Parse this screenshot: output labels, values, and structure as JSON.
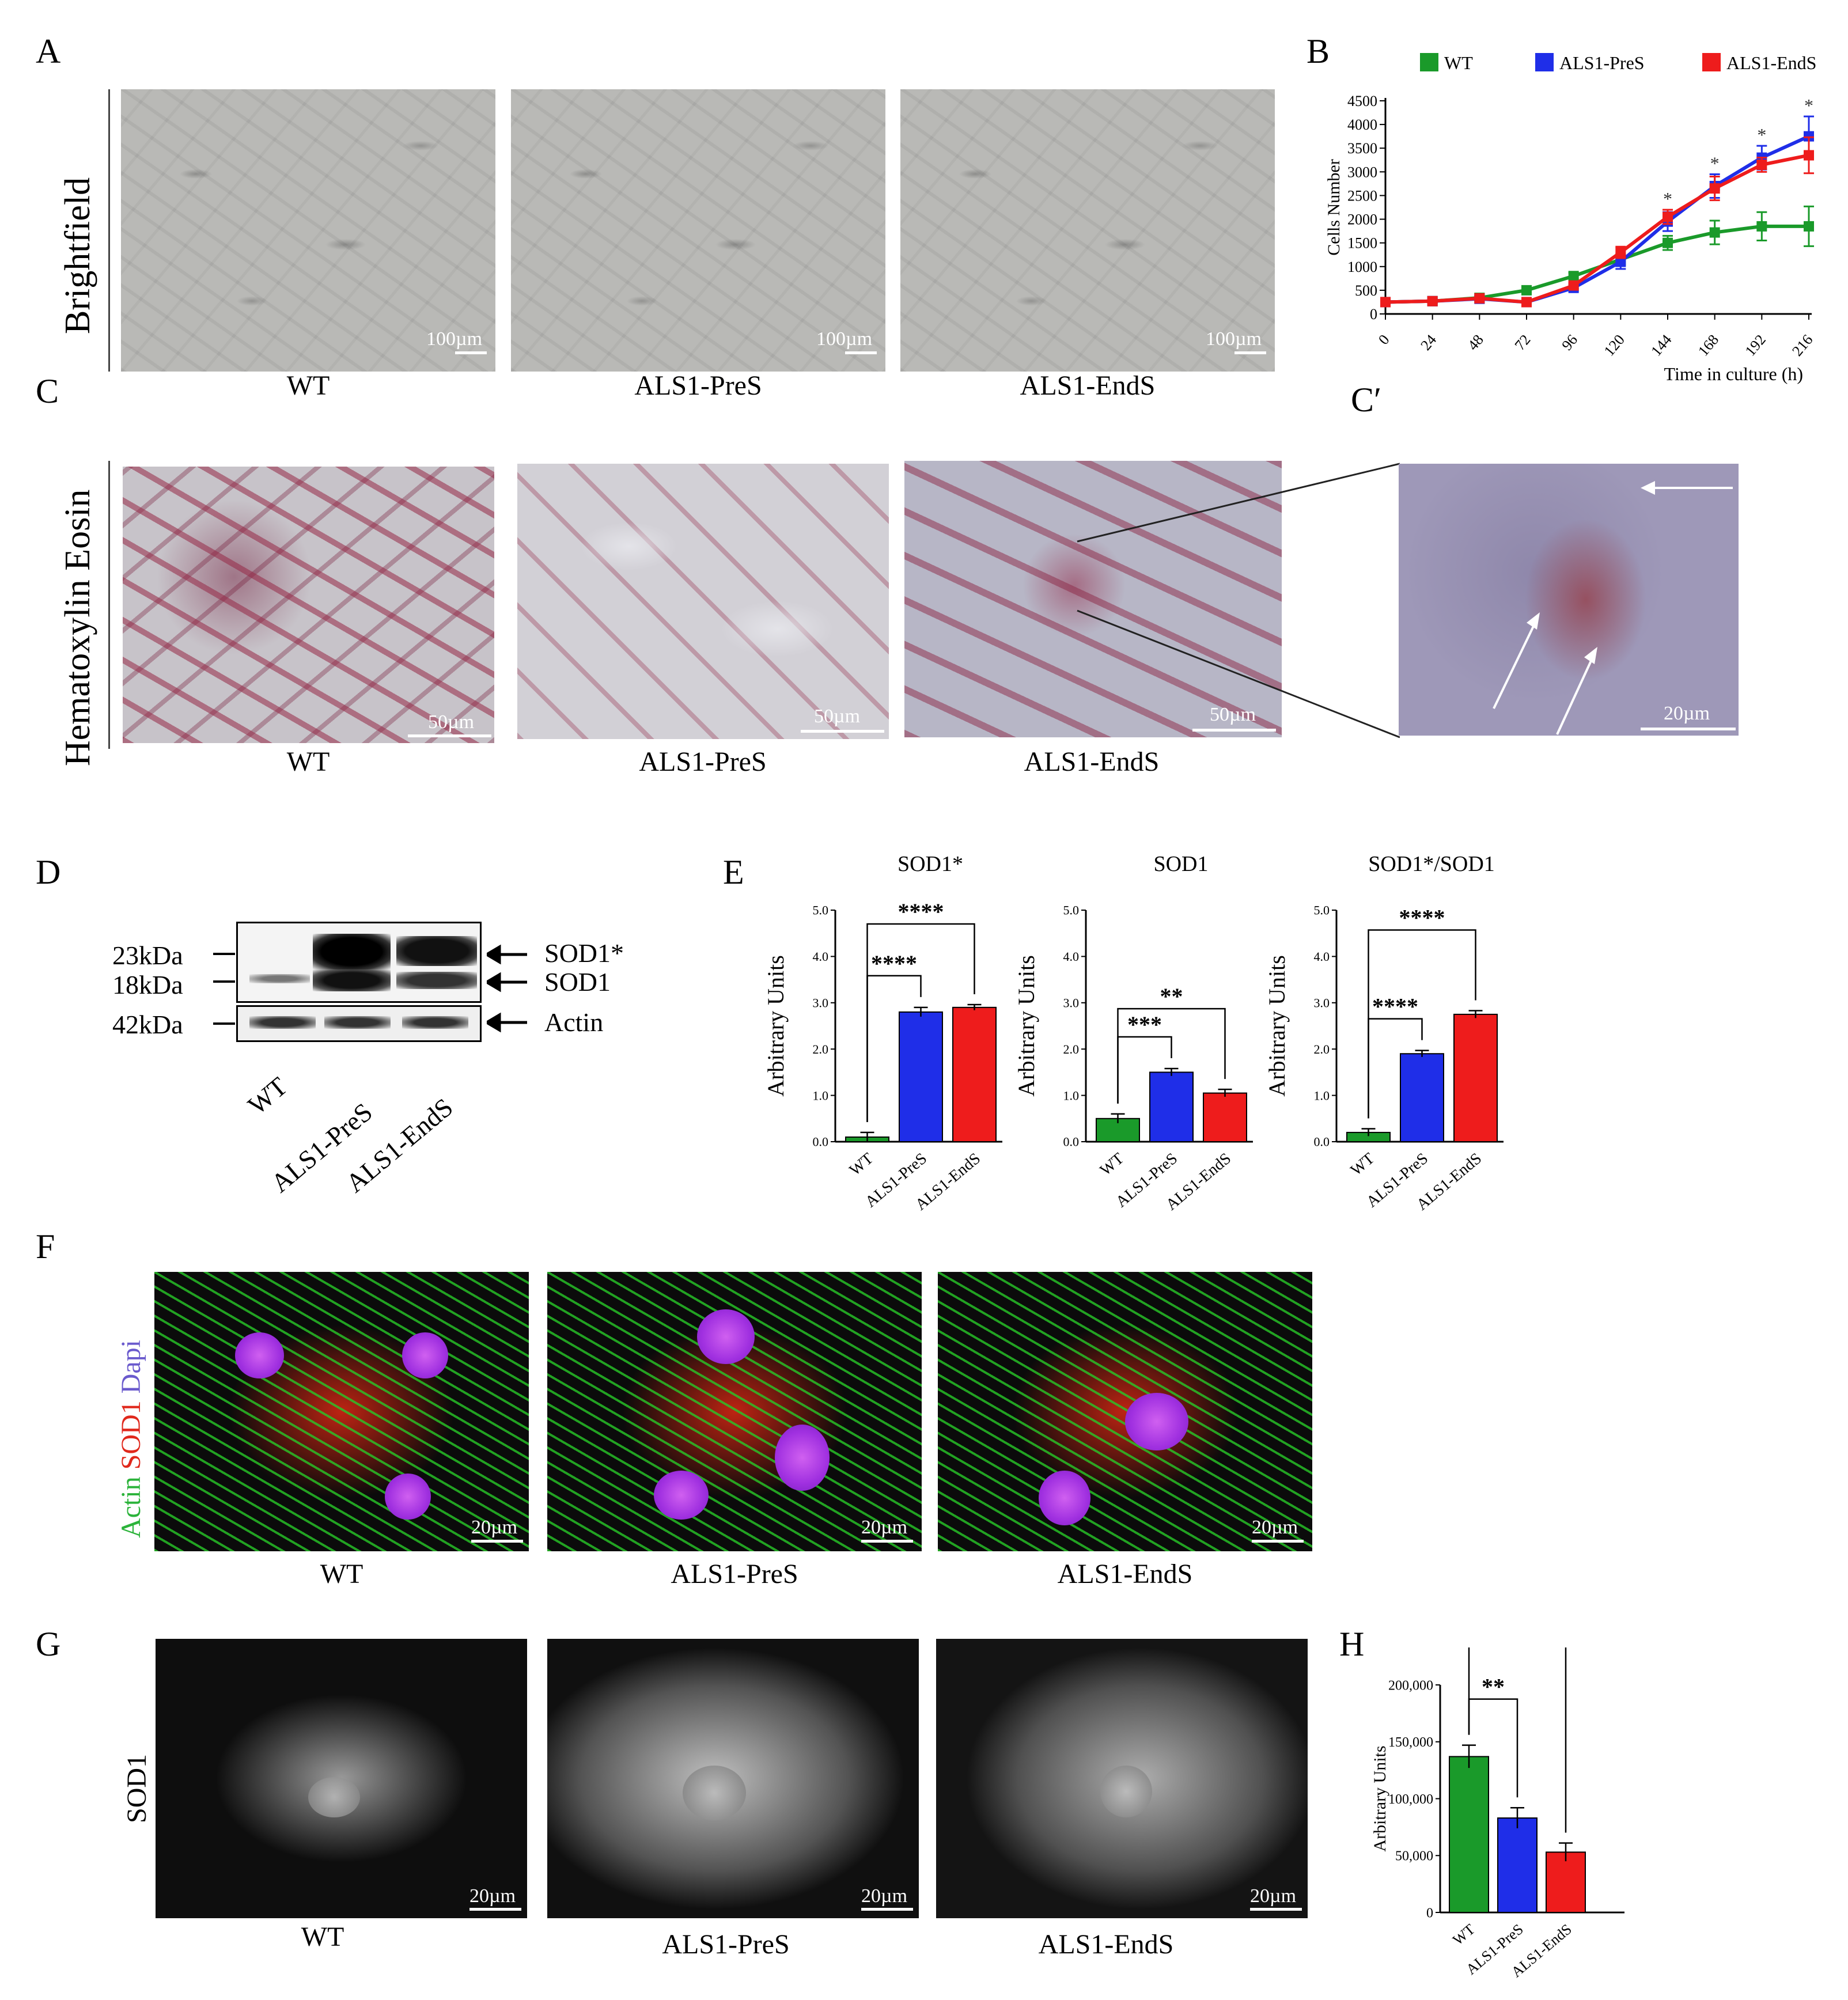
{
  "panel_letters": {
    "A": "A",
    "B": "B",
    "C": "C",
    "C_prime": "C′",
    "D": "D",
    "E": "E",
    "F": "F",
    "G": "G",
    "H": "H"
  },
  "row_labels": {
    "brightfield": "Brightfield",
    "he": "Hematoxylin Eosin",
    "fluor": "Actin SOD1 Dapi",
    "fluor_actin": "Actin",
    "fluor_sod1": "SOD1",
    "fluor_dapi": "Dapi",
    "sod1": "SOD1"
  },
  "conditions": [
    "WT",
    "ALS1-PreS",
    "ALS1-EndS"
  ],
  "scalebars": {
    "bf": "100µm",
    "he": "50µm",
    "zoom": "20µm",
    "fluor": "20µm"
  },
  "colors": {
    "WT": "#1a9a2a",
    "ALS1-PreS": "#1f2ee8",
    "ALS1-EndS": "#ee1c1c",
    "fl_green": "#2ecc40",
    "fl_red": "#e0281c",
    "fl_blue": "#6a5acd"
  },
  "blot": {
    "markers": [
      "23kDa",
      "18kDa",
      "42kDa"
    ],
    "bands": [
      "SOD1*",
      "SOD1",
      "Actin"
    ],
    "lanes": [
      "WT",
      "ALS1-PreS",
      "ALS1-EndS"
    ]
  },
  "chart_data": [
    {
      "id": "B",
      "type": "line",
      "xlabel": "Time in culture (h)",
      "ylabel": "Cells Number",
      "x": [
        0,
        24,
        48,
        72,
        96,
        120,
        144,
        168,
        192,
        216
      ],
      "ylim": [
        0,
        4500
      ],
      "yticks": [
        0,
        500,
        1000,
        1500,
        2000,
        2500,
        3000,
        3500,
        4000,
        4500
      ],
      "legend_position": "top",
      "series": [
        {
          "name": "WT",
          "color": "#1a9a2a",
          "values": [
            250,
            270,
            340,
            500,
            800,
            1150,
            1500,
            1720,
            1850,
            1850
          ],
          "err": [
            30,
            30,
            40,
            50,
            70,
            120,
            150,
            250,
            300,
            420
          ]
        },
        {
          "name": "ALS1-PreS",
          "color": "#1f2ee8",
          "values": [
            250,
            270,
            320,
            250,
            550,
            1100,
            1950,
            2700,
            3300,
            3750
          ],
          "err": [
            30,
            30,
            40,
            40,
            60,
            150,
            200,
            250,
            250,
            420
          ]
        },
        {
          "name": "ALS1-EndS",
          "color": "#ee1c1c",
          "values": [
            250,
            270,
            330,
            250,
            600,
            1300,
            2050,
            2650,
            3150,
            3350
          ],
          "err": [
            30,
            30,
            40,
            40,
            60,
            120,
            150,
            250,
            150,
            380
          ]
        }
      ],
      "significance": [
        {
          "x": 144,
          "label": "*"
        },
        {
          "x": 168,
          "label": "*"
        },
        {
          "x": 192,
          "label": "*"
        },
        {
          "x": 216,
          "label": "*"
        }
      ]
    },
    {
      "id": "E1",
      "type": "bar",
      "title": "SOD1*",
      "ylabel": "Arbitrary Units",
      "categories": [
        "WT",
        "ALS1-PreS",
        "ALS1-EndS"
      ],
      "values": [
        0.1,
        2.8,
        2.9
      ],
      "err": [
        0.1,
        0.1,
        0.06
      ],
      "ylim": [
        0,
        5
      ],
      "yticks": [
        "0.0",
        "1.0",
        "2.0",
        "3.0",
        "4.0",
        "5.0"
      ],
      "brackets": [
        {
          "from": 0,
          "to": 1,
          "label": "****"
        },
        {
          "from": 0,
          "to": 2,
          "label": "****"
        }
      ]
    },
    {
      "id": "E2",
      "type": "bar",
      "title": "SOD1",
      "ylabel": "Arbitrary Units",
      "categories": [
        "WT",
        "ALS1-PreS",
        "ALS1-EndS"
      ],
      "values": [
        0.5,
        1.5,
        1.05
      ],
      "err": [
        0.1,
        0.08,
        0.08
      ],
      "ylim": [
        0,
        5
      ],
      "yticks": [
        "0.0",
        "1.0",
        "2.0",
        "3.0",
        "4.0",
        "5.0"
      ],
      "brackets": [
        {
          "from": 0,
          "to": 1,
          "label": "***"
        },
        {
          "from": 0,
          "to": 2,
          "label": "**"
        }
      ]
    },
    {
      "id": "E3",
      "type": "bar",
      "title": "SOD1*/SOD1",
      "ylabel": "Arbitrary Units",
      "categories": [
        "WT",
        "ALS1-PreS",
        "ALS1-EndS"
      ],
      "values": [
        0.2,
        1.9,
        2.75
      ],
      "err": [
        0.08,
        0.07,
        0.08
      ],
      "ylim": [
        0,
        5
      ],
      "yticks": [
        "0.0",
        "1.0",
        "2.0",
        "3.0",
        "4.0",
        "5.0"
      ],
      "brackets": [
        {
          "from": 0,
          "to": 1,
          "label": "****"
        },
        {
          "from": 0,
          "to": 2,
          "label": "****"
        }
      ]
    },
    {
      "id": "H",
      "type": "bar",
      "ylabel": "Arbitrary Units",
      "categories": [
        "WT",
        "ALS1-PreS",
        "ALS1-EndS"
      ],
      "values": [
        137000,
        83000,
        53000
      ],
      "err": [
        10000,
        9000,
        8000
      ],
      "ylim": [
        0,
        200000
      ],
      "yticks": [
        "0",
        "50,000",
        "100,000",
        "150,000",
        "200,000"
      ],
      "brackets": [
        {
          "from": 0,
          "to": 1,
          "label": "**"
        },
        {
          "from": 0,
          "to": 2,
          "label": "***"
        }
      ]
    }
  ]
}
